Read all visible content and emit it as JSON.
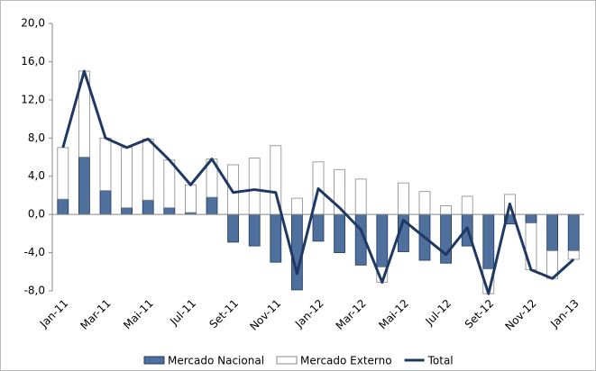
{
  "chart_data": {
    "type": "bar",
    "categories": [
      "Jan-11",
      null,
      "Mar-11",
      null,
      "Mai-11",
      null,
      "Jul-11",
      null,
      "Set-11",
      null,
      "Nov-11",
      null,
      "Jan-12",
      null,
      "Mar-12",
      null,
      "Mai-12",
      null,
      "Jul-12",
      null,
      "Set-12",
      null,
      "Nov-12",
      null,
      "Jan-13"
    ],
    "series": [
      {
        "name": "Mercado Nacional",
        "type": "bar",
        "color": "#4f6f9c",
        "values": [
          1.6,
          6.0,
          2.5,
          0.7,
          1.5,
          0.7,
          0.2,
          1.8,
          -2.9,
          -3.3,
          -5.0,
          -7.9,
          -2.8,
          -4.0,
          -5.3,
          -5.5,
          -3.9,
          -4.8,
          -5.1,
          -3.3,
          -5.7,
          -1.0,
          -0.9,
          -3.8,
          -3.8
        ]
      },
      {
        "name": "Mercado Externo",
        "type": "bar",
        "color": "#ffffff",
        "values": [
          5.4,
          9.0,
          5.5,
          6.3,
          6.4,
          5.0,
          2.9,
          4.0,
          5.2,
          5.9,
          7.2,
          1.7,
          5.5,
          4.7,
          3.7,
          -1.6,
          3.3,
          2.4,
          0.9,
          1.9,
          -2.6,
          2.1,
          -4.9,
          -2.9,
          -0.9
        ]
      },
      {
        "name": "Total",
        "type": "line",
        "color": "#1f3864",
        "values": [
          7.0,
          15.0,
          8.0,
          7.0,
          7.9,
          5.7,
          3.1,
          5.8,
          2.3,
          2.6,
          2.3,
          -6.2,
          2.7,
          0.7,
          -1.6,
          -7.1,
          -0.6,
          -2.4,
          -4.2,
          -1.4,
          -8.3,
          1.1,
          -5.8,
          -6.7,
          -4.7
        ]
      }
    ],
    "ylim": [
      -8,
      20
    ],
    "yticks": [
      {
        "value": -8,
        "label": "-8,0"
      },
      {
        "value": -4,
        "label": "-4,0"
      },
      {
        "value": 0,
        "label": "0,0"
      },
      {
        "value": 4,
        "label": "4,0"
      },
      {
        "value": 8,
        "label": "8,0"
      },
      {
        "value": 12,
        "label": "12,0"
      },
      {
        "value": 16,
        "label": "16,0"
      },
      {
        "value": 20,
        "label": "20,0"
      }
    ],
    "grid": false
  }
}
